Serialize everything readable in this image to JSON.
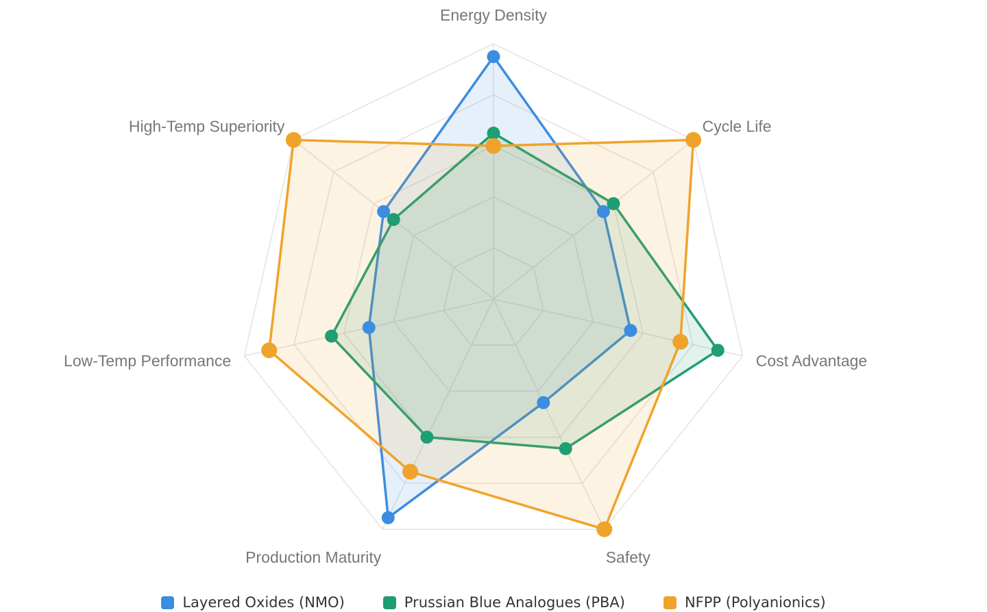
{
  "chart_data": {
    "type": "radar",
    "axes": [
      "Energy Density",
      "Cycle Life",
      "Cost Advantage",
      "Safety",
      "Production Maturity",
      "Low-Temp Performance",
      "High-Temp Superiority"
    ],
    "rmin": 0,
    "rmax": 10,
    "ticks": [
      2,
      4,
      6,
      8,
      10
    ],
    "grid": true,
    "legend_position": "bottom",
    "series": [
      {
        "name": "Layered Oxides (NMO)",
        "color": "#3b8de0",
        "values": [
          9.5,
          5.5,
          5.5,
          4.5,
          9.5,
          5.0,
          5.5
        ]
      },
      {
        "name": "Prussian Blue Analogues (PBA)",
        "color": "#1e9e72",
        "values": [
          6.5,
          6.0,
          9.0,
          6.5,
          6.0,
          6.5,
          5.0
        ]
      },
      {
        "name": "NFPP (Polyanionics)",
        "color": "#f0a32a",
        "values": [
          6.0,
          10.0,
          7.5,
          10.0,
          7.5,
          9.0,
          10.0
        ]
      }
    ]
  }
}
